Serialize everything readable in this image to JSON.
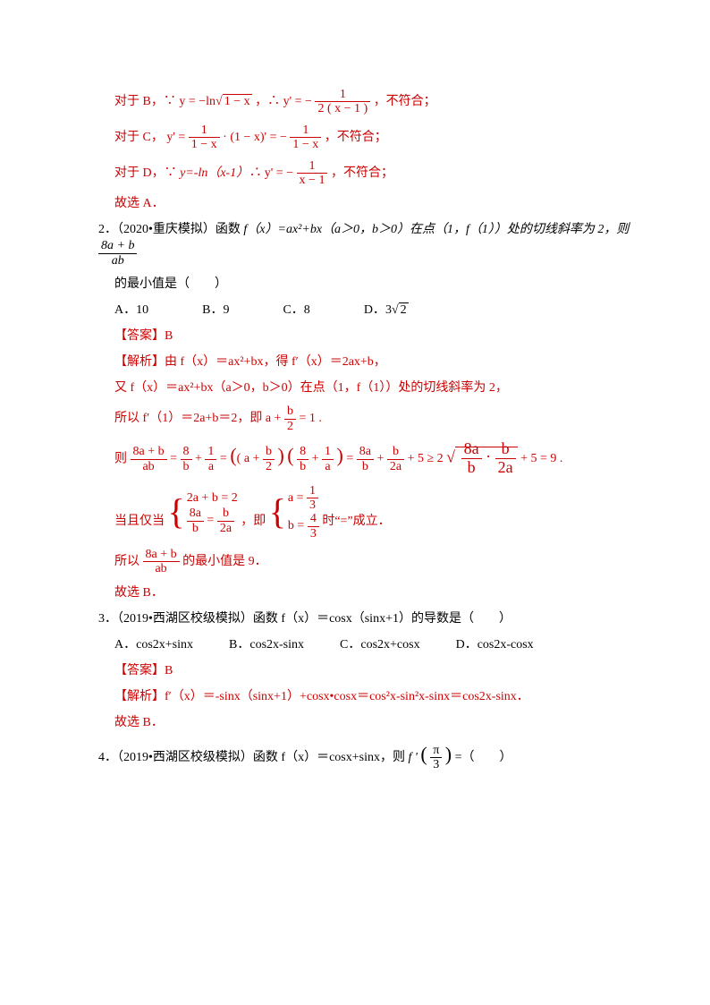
{
  "colors": {
    "text": "#000000",
    "highlight": "#cc0000",
    "background": "#ffffff"
  },
  "typography": {
    "base_fontsize": 14,
    "math_font": "Times New Roman",
    "body_font": "SimSun"
  },
  "p1": {
    "lineB_pre": "对于 B，∵",
    "lineB_eq1": "y = −ln",
    "lineB_sqrt": "1 − x",
    "lineB_mid": "，∴",
    "lineB_y": "y' = −",
    "lineB_num": "1",
    "lineB_den": "2 ( x − 1 )",
    "lineB_post": "，不符合；",
    "lineC_pre": "对于 C，",
    "lineC_y": "y' =",
    "lineC_f1n": "1",
    "lineC_f1d": "1 − x",
    "lineC_mid": "· (1 − x)' = −",
    "lineC_f2n": "1",
    "lineC_f2d": "1 − x",
    "lineC_post": "，不符合；",
    "lineD_pre": "对于 D，∵",
    "lineD_eq": "y=-ln（x-1）∴",
    "lineD_y": "y' = −",
    "lineD_n": "1",
    "lineD_d": "x − 1",
    "lineD_post": "，不符合；",
    "concl": "故选 A．"
  },
  "q2": {
    "num": "2．",
    "stem_a": "（2020•重庆模拟）函数",
    "stem_b": "f（x）=ax²+bx（a＞0，b＞0）在点（1，f（1））处的切线斜率为 2，则",
    "frac_n": "8a + b",
    "frac_d": "ab",
    "stem_c": "的最小值是（　　）",
    "optA": "A．10",
    "optB": "B．9",
    "optC": "C．8",
    "optD_pre": "D．",
    "optD_val": "3",
    "optD_sqrt": "2",
    "ans": "【答案】B",
    "s1": "【解析】由 f（x）＝ax²+bx，得 f′（x）＝2ax+b，",
    "s2": "又 f（x）＝ax²+bx（a＞0，b＞0）在点（1，f（1））处的切线斜率为 2，",
    "s3_a": "所以 f′（1）＝2a+b＝2，即",
    "s3_eq": "a +",
    "s3_fn": "b",
    "s3_fd": "2",
    "s3_post": "= 1 .",
    "s4_pre": "则",
    "s4_e1n": "8a + b",
    "s4_e1d": "ab",
    "s4_e2n": "8",
    "s4_e2d": "b",
    "s4_plus1": "+",
    "s4_e3n": "1",
    "s4_e3d": "a",
    "s4_eq3": "=",
    "s4_par1": "( a +",
    "s4_p1fn": "b",
    "s4_p1fd": "2",
    "s4_par1c": ")",
    "s4_par2": "(",
    "s4_p2f1n": "8",
    "s4_p2f1d": "b",
    "s4_p2plus": "+",
    "s4_p2f2n": "1",
    "s4_p2f2d": "a",
    "s4_par2c": ")",
    "s4_eq4": "=",
    "s4_e4n": "8a",
    "s4_e4d": "b",
    "s4_plus2": "+",
    "s4_e5n": "b",
    "s4_e5d": "2a",
    "s4_plus5": "+ 5 ≥ 2",
    "s4_r1n": "8a",
    "s4_r1d": "b",
    "s4_rdot": "·",
    "s4_r2n": "b",
    "s4_r2d": "2a",
    "s4_tail": "+ 5 = 9 .",
    "s5_pre": "当且仅当",
    "s5_sys1": "2a + b = 2",
    "s5_sys2a": "8a",
    "s5_sys2b": "b",
    "s5_sys2eq": "=",
    "s5_sys2c": "b",
    "s5_sys2d": "2a",
    "s5_mid": "，即",
    "s5_a": "a =",
    "s5_an": "1",
    "s5_ad": "3",
    "s5_b": "b =",
    "s5_bn": "4",
    "s5_bd": "3",
    "s5_post": "时“=”成立．",
    "s6_a": "所以",
    "s6_n": "8a + b",
    "s6_d": "ab",
    "s6_b": "的最小值是 9．",
    "concl": "故选 B．"
  },
  "q3": {
    "num": "3．",
    "stem": "（2019•西湖区校级模拟）函数 f（x）＝cosx（sinx+1）的导数是（　　）",
    "optA": "A．cos2x+sinx",
    "optB": "B．cos2x-sinx",
    "optC": "C．cos2x+cosx",
    "optD": "D．cos2x-cosx",
    "ans": "【答案】B",
    "s1": "【解析】f′（x）＝-sinx（sinx+1）+cosx•cosx＝cos²x-sin²x-sinx＝cos2x-sinx．",
    "concl": "故选 B．"
  },
  "q4": {
    "num": "4．",
    "stem_a": "（2019•西湖区校级模拟）函数 f（x）＝cosx+sinx，则",
    "stem_f": "f '",
    "stem_n": "π",
    "stem_d": "3",
    "stem_c": "=（　　）"
  }
}
